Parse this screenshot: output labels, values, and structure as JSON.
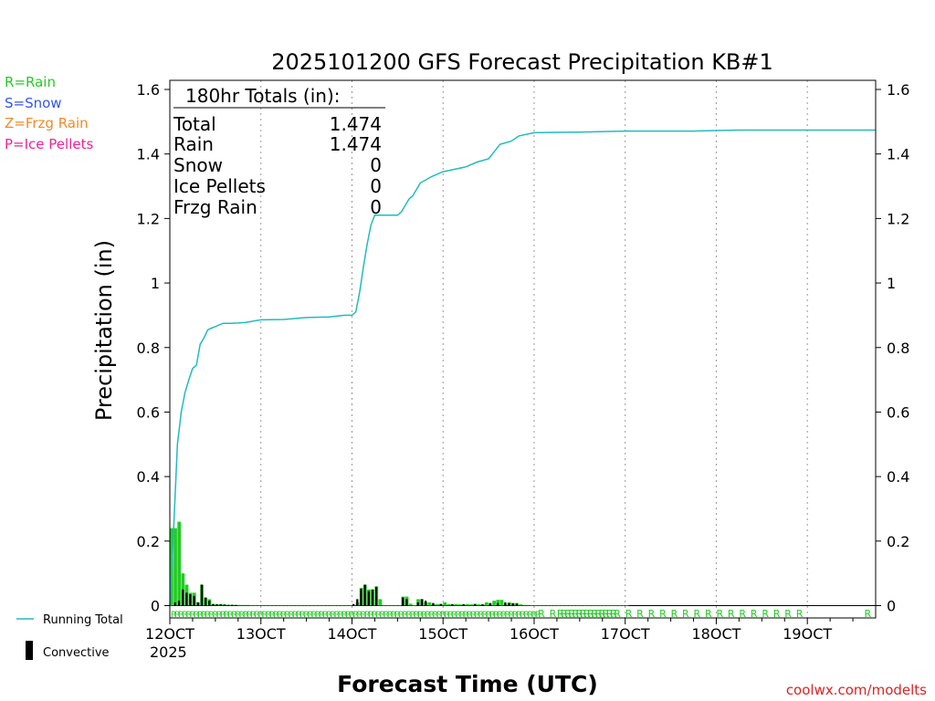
{
  "chart_data": {
    "type": "bar",
    "title": "2025101200 GFS Forecast Precipitation KB#1",
    "ylabel": "Precipitation (in)",
    "xlabel": "Forecast Time (UTC)",
    "ylim": [
      0,
      1.6
    ],
    "xlim_hours": [
      0,
      186
    ],
    "y_ticks": [
      "0",
      "0.2",
      "0.4",
      "0.6",
      "0.8",
      "1",
      "1.2",
      "1.4",
      "1.6"
    ],
    "y_tick_values": [
      0,
      0.2,
      0.4,
      0.6,
      0.8,
      1,
      1.2,
      1.4,
      1.6
    ],
    "x_ticks": [
      "12OCT",
      "13OCT",
      "14OCT",
      "15OCT",
      "16OCT",
      "17OCT",
      "18OCT",
      "19OCT"
    ],
    "x_tick_hours": [
      0,
      24,
      48,
      72,
      96,
      120,
      144,
      168
    ],
    "year_label": "2025",
    "legend": {
      "types": [
        {
          "label": "R=Rain",
          "color": "#22cc22"
        },
        {
          "label": "S=Snow",
          "color": "#3355ee"
        },
        {
          "label": "Z=Frzg Rain",
          "color": "#f08a2a"
        },
        {
          "label": "P=Ice Pellets",
          "color": "#ee2299"
        }
      ],
      "running_total": "Running Total",
      "convective": "Convective"
    },
    "totals": {
      "header": "180hr Totals (in):",
      "rows": [
        {
          "label": "Total",
          "value": "1.474"
        },
        {
          "label": "Rain",
          "value": "1.474"
        },
        {
          "label": "Snow",
          "value": "0"
        },
        {
          "label": "Ice Pellets",
          "value": "0"
        },
        {
          "label": "Frzg Rain",
          "value": "0"
        }
      ]
    },
    "series": [
      {
        "name": "Running Total",
        "color": "#22bbbb",
        "hours": [
          0,
          1,
          2,
          3,
          4,
          5,
          6,
          7,
          8,
          9,
          10,
          11,
          12,
          13,
          14,
          15,
          16,
          18,
          20,
          24,
          30,
          36,
          42,
          46,
          48,
          49,
          50,
          51,
          52,
          53,
          54,
          56,
          58,
          60,
          61,
          63,
          64,
          66,
          69,
          72,
          76,
          78,
          81,
          84,
          85,
          87,
          90,
          92,
          96,
          102,
          108,
          120,
          138,
          150,
          186
        ],
        "values": [
          0,
          0.24,
          0.5,
          0.6,
          0.66,
          0.7,
          0.735,
          0.745,
          0.81,
          0.83,
          0.855,
          0.86,
          0.865,
          0.87,
          0.875,
          0.875,
          0.875,
          0.876,
          0.878,
          0.886,
          0.887,
          0.893,
          0.895,
          0.9,
          0.9,
          0.91,
          0.97,
          1.05,
          1.12,
          1.18,
          1.21,
          1.21,
          1.21,
          1.21,
          1.22,
          1.26,
          1.27,
          1.31,
          1.33,
          1.345,
          1.355,
          1.36,
          1.375,
          1.385,
          1.4,
          1.43,
          1.44,
          1.456,
          1.466,
          1.467,
          1.468,
          1.471,
          1.471,
          1.474,
          1.474
        ]
      },
      {
        "name": "Precipitation per period",
        "color": "#22cc22",
        "hours": [
          0,
          1,
          2,
          3,
          4,
          5,
          6,
          7,
          8,
          9,
          10,
          11,
          12,
          13,
          14,
          15,
          16,
          17,
          18,
          19,
          20,
          21,
          22,
          23,
          24,
          25,
          26,
          27,
          28,
          29,
          30,
          31,
          32,
          33,
          34,
          35,
          36,
          37,
          38,
          39,
          40,
          41,
          42,
          43,
          44,
          45,
          46,
          47,
          48,
          49,
          50,
          51,
          52,
          53,
          54,
          55,
          56,
          57,
          58,
          59,
          60,
          61,
          62,
          63,
          64,
          65,
          66,
          67,
          68,
          69,
          70,
          71,
          72,
          73,
          74,
          75,
          76,
          77,
          78,
          79,
          80,
          81,
          82,
          83,
          84,
          85,
          86,
          87,
          88,
          89,
          90,
          91,
          92,
          93,
          94,
          95,
          96,
          97,
          98,
          99,
          100,
          101,
          102,
          103,
          104,
          105,
          106,
          107,
          108,
          109,
          110,
          111,
          112,
          113,
          114,
          115,
          116,
          117,
          118,
          119,
          120
        ],
        "values": [
          0.24,
          0.24,
          0.26,
          0.1,
          0.065,
          0.04,
          0.04,
          0.01,
          0.065,
          0.025,
          0.02,
          0.005,
          0.005,
          0.005,
          0.004,
          0.003,
          0.003,
          0.002,
          0.002,
          0.002,
          0.002,
          0.001,
          0.001,
          0.001,
          0.001,
          0.001,
          0.001,
          0.001,
          0.001,
          0.001,
          0.001,
          0.001,
          0.001,
          0.001,
          0.001,
          0.001,
          0.001,
          0.001,
          0.001,
          0.001,
          0.001,
          0.001,
          0.001,
          0.001,
          0.001,
          0.001,
          0.001,
          0.001,
          0.002,
          0.01,
          0.055,
          0.065,
          0.05,
          0.05,
          0.06,
          0.02,
          0.001,
          0.001,
          0.001,
          0.001,
          0.001,
          0.028,
          0.028,
          0.006,
          0.001,
          0.02,
          0.02,
          0.01,
          0.01,
          0.005,
          0.005,
          0.005,
          0.01,
          0.005,
          0.005,
          0.005,
          0.004,
          0.004,
          0.005,
          0.004,
          0.006,
          0.004,
          0.004,
          0.01,
          0.006,
          0.015,
          0.018,
          0.018,
          0.005,
          0.01,
          0.008,
          0.008,
          0.004,
          0.002,
          0.002,
          0.001,
          0.001,
          0.001,
          0.001,
          0.001,
          0.001,
          0.001,
          0.001,
          0.001,
          0.001,
          0.001,
          0.001,
          0.001,
          0.001,
          0.001,
          0.001,
          0.001,
          0.001,
          0.001,
          0.001,
          0.001,
          0.001,
          0.001,
          0.001,
          0.001,
          0.001
        ]
      },
      {
        "name": "Convective",
        "color": "#000000",
        "hours": [
          1,
          2,
          3,
          4,
          5,
          6,
          7,
          8,
          9,
          10,
          11,
          12,
          13,
          14,
          15,
          16,
          17,
          48,
          49,
          50,
          51,
          52,
          53,
          54,
          61,
          62,
          65,
          66,
          67,
          69,
          71,
          74,
          77,
          80,
          82,
          84,
          86,
          88,
          89,
          90,
          91
        ],
        "values": [
          0.01,
          0.015,
          0.05,
          0.04,
          0.035,
          0.03,
          0.01,
          0.065,
          0.025,
          0.015,
          0.005,
          0.004,
          0.004,
          0.003,
          0.002,
          0.002,
          0.002,
          0.005,
          0.02,
          0.052,
          0.065,
          0.045,
          0.05,
          0.058,
          0.025,
          0.02,
          0.01,
          0.02,
          0.015,
          0.008,
          0.005,
          0.004,
          0.004,
          0.004,
          0.004,
          0.008,
          0.008,
          0.01,
          0.008,
          0.007,
          0.006
        ]
      }
    ],
    "type_row": {
      "dense_char": "R",
      "dense_start_hour": 0,
      "dense_end_hour": 96,
      "sparse_hours": [
        97,
        100,
        102,
        103,
        104,
        105,
        106,
        107,
        108,
        109,
        110,
        111,
        112,
        113,
        114,
        115,
        116,
        117,
        120,
        123,
        126,
        129,
        132,
        135,
        138,
        141,
        144,
        147,
        150,
        153,
        156,
        159,
        162,
        165,
        183
      ]
    },
    "watermark": "coolwx.com/modelts"
  }
}
